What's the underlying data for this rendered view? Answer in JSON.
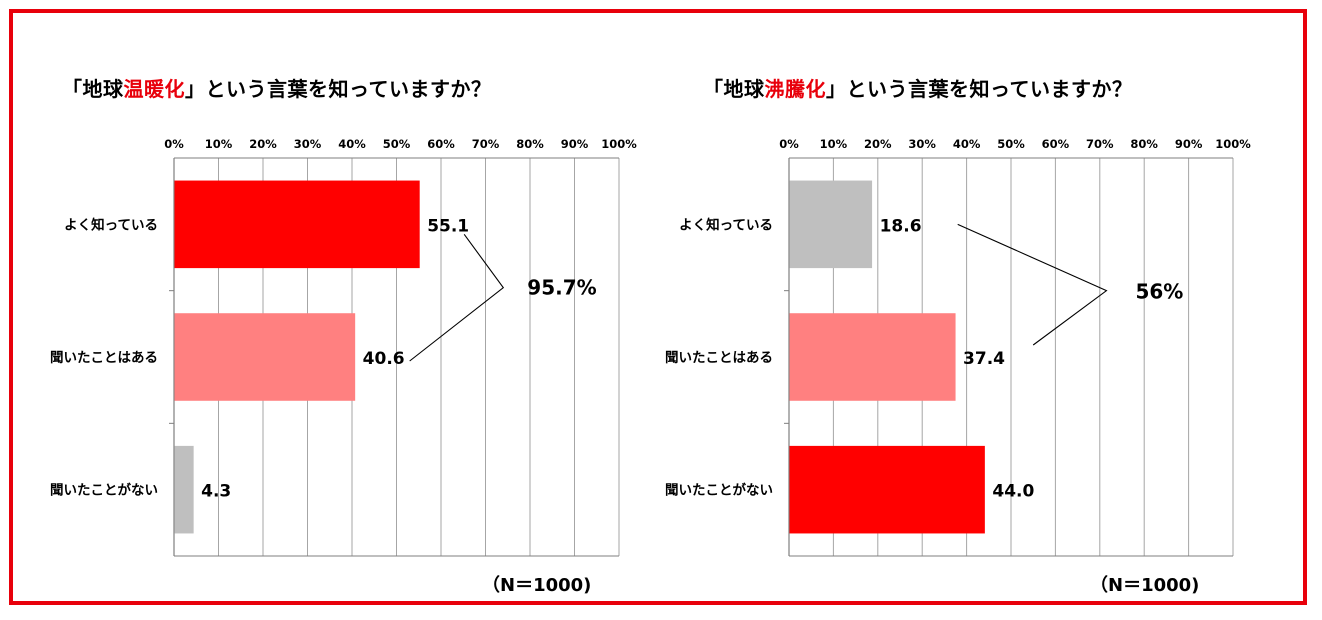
{
  "chart_data": [
    {
      "type": "bar",
      "orientation": "horizontal",
      "title_parts": [
        "「地球",
        "温暖化",
        "」という言葉を知っていますか？"
      ],
      "title_highlight_color": "#e8000b",
      "x_ticks": [
        "0%",
        "10%",
        "20%",
        "30%",
        "40%",
        "50%",
        "60%",
        "70%",
        "80%",
        "90%",
        "100%"
      ],
      "xlim": [
        0,
        100
      ],
      "grid": true,
      "categories": [
        "よく知っている",
        "聞いたことはある",
        "聞いたことがない"
      ],
      "values": [
        55.1,
        40.6,
        4.3
      ],
      "value_labels": [
        "55.1",
        "40.6",
        "4.3"
      ],
      "bar_colors": [
        "#ff0000",
        "#ff8080",
        "#bfbfbf"
      ],
      "bracket_total": "95.7%",
      "sample": "（N＝1000)"
    },
    {
      "type": "bar",
      "orientation": "horizontal",
      "title_parts": [
        "「地球",
        "沸騰化",
        "」という言葉を知っていますか？"
      ],
      "title_highlight_color": "#e8000b",
      "x_ticks": [
        "0%",
        "10%",
        "20%",
        "30%",
        "40%",
        "50%",
        "60%",
        "70%",
        "80%",
        "90%",
        "100%"
      ],
      "xlim": [
        0,
        100
      ],
      "grid": true,
      "categories": [
        "よく知っている",
        "聞いたことはある",
        "聞いたことがない"
      ],
      "values": [
        18.6,
        37.4,
        44.0
      ],
      "value_labels": [
        "18.6",
        "37.4",
        "44.0"
      ],
      "bar_colors": [
        "#bfbfbf",
        "#ff8080",
        "#ff0000"
      ],
      "bracket_total": "56%",
      "sample": "（N＝1000)"
    }
  ]
}
